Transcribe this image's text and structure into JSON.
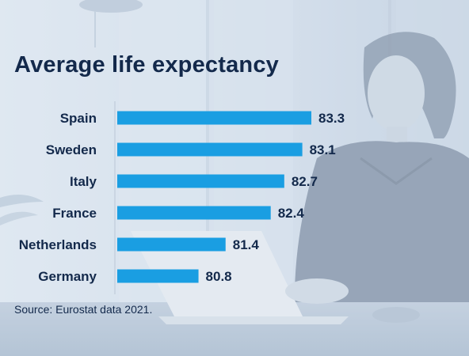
{
  "chart_data": {
    "type": "bar",
    "orientation": "horizontal",
    "title": "Average life expectancy",
    "categories": [
      "Spain",
      "Sweden",
      "Italy",
      "France",
      "Netherlands",
      "Germany"
    ],
    "values": [
      83.3,
      83.1,
      82.7,
      82.4,
      81.4,
      80.8
    ],
    "value_labels": [
      "83.3",
      "83.1",
      "82.7",
      "82.4",
      "81.4",
      "80.8"
    ],
    "xlim": [
      79.0,
      83.3
    ],
    "bar_color": "#1a9ee2",
    "text_color": "#13294b",
    "source": "Source: Eurostat data 2021.",
    "grid": false,
    "legend": "none"
  }
}
